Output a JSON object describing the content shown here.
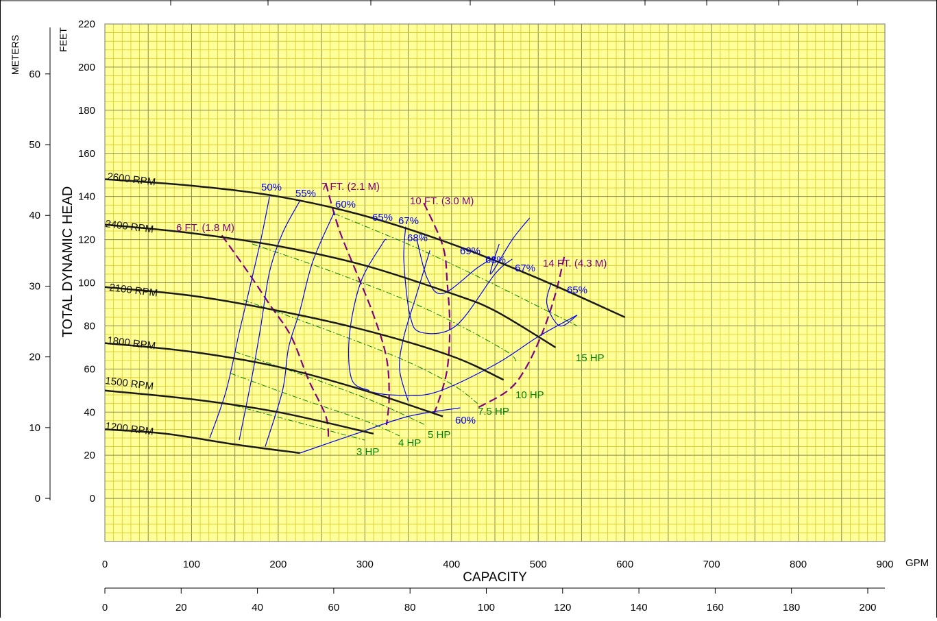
{
  "chart_data": {
    "type": "line",
    "title": "",
    "xlabel": "CAPACITY",
    "x_unit": "GPM",
    "ylabel": "TOTAL DYNAMIC HEAD",
    "y_unit_ft": "FEET",
    "y_unit_m": "METERS",
    "xlim": [
      0,
      900
    ],
    "ylim": [
      -20,
      220
    ],
    "grid": true,
    "x_ticks": [
      "0",
      "100",
      "200",
      "300",
      "400",
      "500",
      "600",
      "700",
      "800",
      "900"
    ],
    "x2_ticks": [
      "0",
      "20",
      "40",
      "60",
      "80",
      "100",
      "120",
      "140",
      "160",
      "180",
      "200"
    ],
    "y_ticks_ft": [
      "0",
      "20",
      "40",
      "60",
      "80",
      "100",
      "120",
      "140",
      "160",
      "180",
      "200",
      "220"
    ],
    "y_ticks_m": [
      "0",
      "10",
      "20",
      "30",
      "40",
      "50",
      "60"
    ],
    "colors": {
      "grid_major": "#c8b400",
      "grid_minor": "#d8c828",
      "background": "#ffff9a",
      "speed": "#1a1a1a",
      "efficiency": "#0000ee",
      "npsh": "#800080",
      "power": "#008000"
    },
    "speed_curves": [
      {
        "name": "2600 RPM",
        "points": [
          [
            0,
            148
          ],
          [
            100,
            145
          ],
          [
            200,
            140
          ],
          [
            300,
            131
          ],
          [
            400,
            118
          ],
          [
            500,
            102
          ],
          [
            600,
            84
          ]
        ]
      },
      {
        "name": "2400 RPM",
        "points": [
          [
            0,
            127
          ],
          [
            100,
            123
          ],
          [
            200,
            117
          ],
          [
            300,
            108
          ],
          [
            400,
            95
          ],
          [
            450,
            87
          ],
          [
            520,
            70
          ]
        ]
      },
      {
        "name": "2100 RPM",
        "points": [
          [
            0,
            98
          ],
          [
            100,
            94
          ],
          [
            200,
            87
          ],
          [
            300,
            78
          ],
          [
            400,
            66
          ],
          [
            460,
            55
          ]
        ]
      },
      {
        "name": "1800 RPM",
        "points": [
          [
            0,
            72
          ],
          [
            100,
            68
          ],
          [
            200,
            61
          ],
          [
            300,
            50
          ],
          [
            390,
            38
          ]
        ]
      },
      {
        "name": "1500 RPM",
        "points": [
          [
            0,
            50
          ],
          [
            100,
            46
          ],
          [
            200,
            40
          ],
          [
            310,
            30
          ]
        ]
      },
      {
        "name": "1200 RPM",
        "points": [
          [
            0,
            32
          ],
          [
            70,
            30
          ],
          [
            150,
            25
          ],
          [
            225,
            21
          ]
        ]
      }
    ],
    "efficiency_curves": [
      {
        "name": "50%",
        "points": [
          [
            121,
            28
          ],
          [
            140,
            50
          ],
          [
            155,
            77
          ],
          [
            165,
            94
          ],
          [
            180,
            120
          ],
          [
            190,
            140
          ]
        ]
      },
      {
        "name": "55%",
        "points": [
          [
            155,
            27
          ],
          [
            170,
            57
          ],
          [
            180,
            80
          ],
          [
            190,
            105
          ],
          [
            205,
            123
          ],
          [
            225,
            138
          ]
        ]
      },
      {
        "name": "60%",
        "points": [
          [
            185,
            24
          ],
          [
            205,
            50
          ],
          [
            212,
            70
          ],
          [
            225,
            87
          ],
          [
            240,
            110
          ],
          [
            265,
            133
          ]
        ]
      },
      {
        "name": "65%",
        "points": [
          [
            305,
            50
          ],
          [
            285,
            55
          ],
          [
            282,
            75
          ],
          [
            295,
            100
          ],
          [
            320,
            118
          ],
          [
            325,
            120
          ]
        ]
      },
      {
        "name": "67%",
        "points": [
          [
            350,
            45
          ],
          [
            340,
            60
          ],
          [
            345,
            75
          ],
          [
            360,
            95
          ],
          [
            375,
            115
          ]
        ]
      },
      {
        "name": "68%",
        "points": [
          [
            347,
            126
          ],
          [
            345,
            110
          ],
          [
            352,
            85
          ],
          [
            365,
            77
          ],
          [
            405,
            80
          ],
          [
            450,
            104
          ],
          [
            470,
            111
          ]
        ]
      },
      {
        "name": "69%",
        "points": [
          [
            360,
            120
          ],
          [
            372,
            102
          ],
          [
            390,
            95
          ],
          [
            430,
            107
          ],
          [
            450,
            112
          ]
        ]
      },
      {
        "name": "68%",
        "points": [
          [
            300,
            50
          ],
          [
            330,
            48
          ],
          [
            380,
            49
          ],
          [
            450,
            62
          ],
          [
            500,
            75
          ],
          [
            545,
            85
          ]
        ]
      },
      {
        "name": "67%",
        "points": [
          [
            490,
            130
          ],
          [
            470,
            120
          ],
          [
            445,
            104
          ],
          [
            455,
            118
          ]
        ]
      },
      {
        "name": "65%",
        "points": [
          [
            515,
            100
          ],
          [
            510,
            90
          ],
          [
            525,
            80
          ],
          [
            545,
            85
          ]
        ]
      },
      {
        "name": "60%",
        "points": [
          [
            225,
            21
          ],
          [
            290,
            30
          ],
          [
            350,
            38
          ],
          [
            410,
            42
          ]
        ]
      }
    ],
    "npsh_curves": [
      {
        "name": "6 FT. (1.8 M)",
        "points": [
          [
            135,
            122
          ],
          [
            165,
            105
          ],
          [
            190,
            90
          ],
          [
            215,
            75
          ],
          [
            235,
            55
          ],
          [
            255,
            38
          ],
          [
            258,
            27
          ]
        ]
      },
      {
        "name": "7 FT. (2.1 M)",
        "points": [
          [
            255,
            146
          ],
          [
            270,
            125
          ],
          [
            290,
            105
          ],
          [
            310,
            85
          ],
          [
            325,
            65
          ],
          [
            328,
            47
          ],
          [
            325,
            34
          ]
        ]
      },
      {
        "name": "10 FT. (3.0 M)",
        "points": [
          [
            368,
            137
          ],
          [
            390,
            117
          ],
          [
            395,
            100
          ],
          [
            398,
            80
          ],
          [
            395,
            60
          ],
          [
            385,
            45
          ],
          [
            378,
            38
          ]
        ]
      },
      {
        "name": "14 FT. (4.3 M)",
        "points": [
          [
            530,
            112
          ],
          [
            520,
            95
          ],
          [
            505,
            77
          ],
          [
            485,
            60
          ],
          [
            465,
            50
          ],
          [
            430,
            42
          ]
        ]
      }
    ],
    "power_curves": [
      {
        "name": "3 HP",
        "points": [
          [
            150,
            43
          ],
          [
            225,
            35
          ],
          [
            300,
            27
          ]
        ]
      },
      {
        "name": "4 HP",
        "points": [
          [
            145,
            58
          ],
          [
            220,
            47
          ],
          [
            300,
            36
          ],
          [
            340,
            29
          ]
        ]
      },
      {
        "name": "5 HP",
        "points": [
          [
            150,
            68
          ],
          [
            230,
            57
          ],
          [
            310,
            45
          ],
          [
            370,
            34
          ]
        ]
      },
      {
        "name": "7.5 HP",
        "points": [
          [
            160,
            92
          ],
          [
            250,
            79
          ],
          [
            340,
            65
          ],
          [
            400,
            53
          ],
          [
            430,
            44
          ]
        ]
      },
      {
        "name": "10 HP",
        "points": [
          [
            170,
            118
          ],
          [
            270,
            104
          ],
          [
            370,
            88
          ],
          [
            460,
            69
          ],
          [
            475,
            63
          ]
        ]
      },
      {
        "name": "15 HP",
        "points": [
          [
            265,
            132
          ],
          [
            355,
            117
          ],
          [
            440,
            101
          ],
          [
            510,
            87
          ],
          [
            545,
            80
          ]
        ]
      }
    ],
    "annotations": {
      "speed_labels": [
        "2600 RPM",
        "2400 RPM",
        "2100 RPM",
        "1800 RPM",
        "1500 RPM",
        "1200 RPM"
      ],
      "efficiency_labels": [
        "50%",
        "55%",
        "60%",
        "65%",
        "67%",
        "68%",
        "69%",
        "68%",
        "67%",
        "65%",
        "60%"
      ],
      "npsh_labels": [
        "6 FT. (1.8 M)",
        "7 FT. (2.1 M)",
        "10 FT. (3.0 M)",
        "14 FT. (4.3 M)"
      ],
      "power_labels": [
        "3 HP",
        "4 HP",
        "5 HP",
        "7.5 HP",
        "10 HP",
        "15 HP"
      ]
    }
  }
}
